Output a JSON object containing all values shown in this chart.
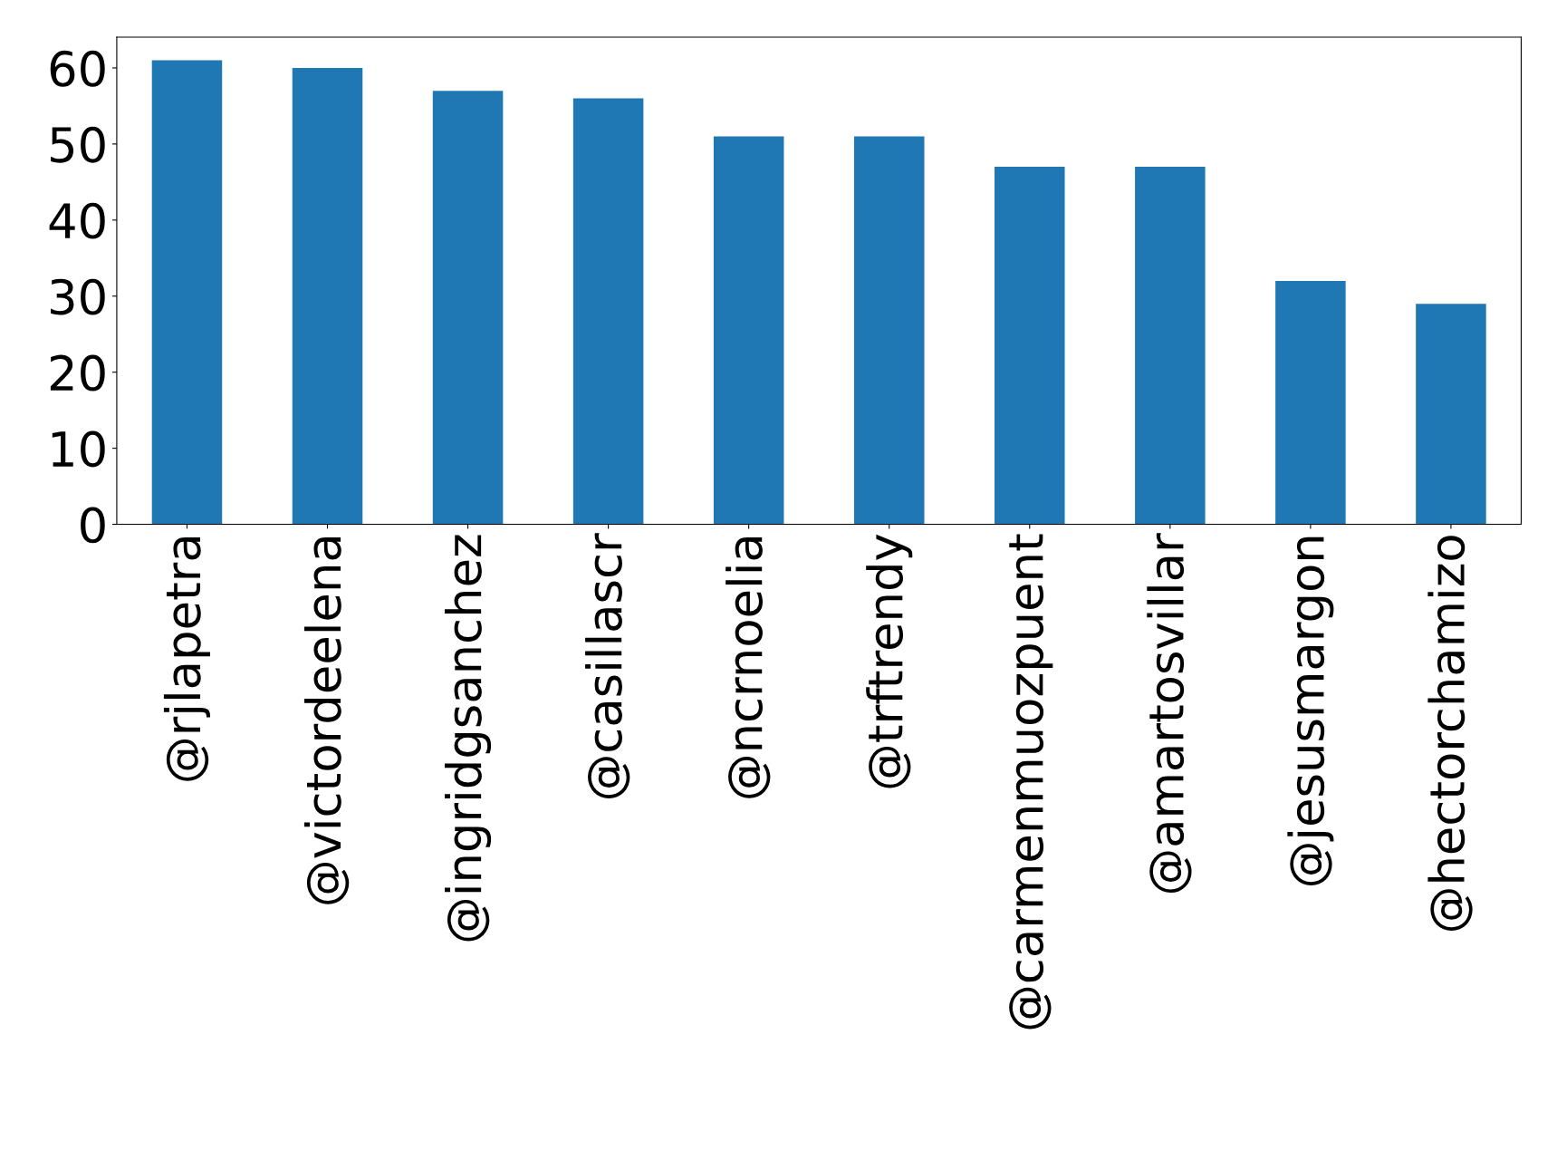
{
  "chart_data": {
    "type": "bar",
    "categories": [
      "@rjlapetra",
      "@victordeelena",
      "@ingridgsanchez",
      "@casillascr",
      "@ncrnoelia",
      "@trftrendy",
      "@carmenmuozpuent",
      "@amartosvillar",
      "@jesusmargon",
      "@hectorchamizo"
    ],
    "values": [
      61,
      60,
      57,
      56,
      51,
      51,
      47,
      47,
      32,
      29
    ],
    "color": "#1f77b4",
    "ylim": [
      0,
      64.05
    ],
    "yticks": [
      0,
      10,
      20,
      30,
      40,
      50,
      60
    ],
    "grid": false,
    "legend": false
  }
}
